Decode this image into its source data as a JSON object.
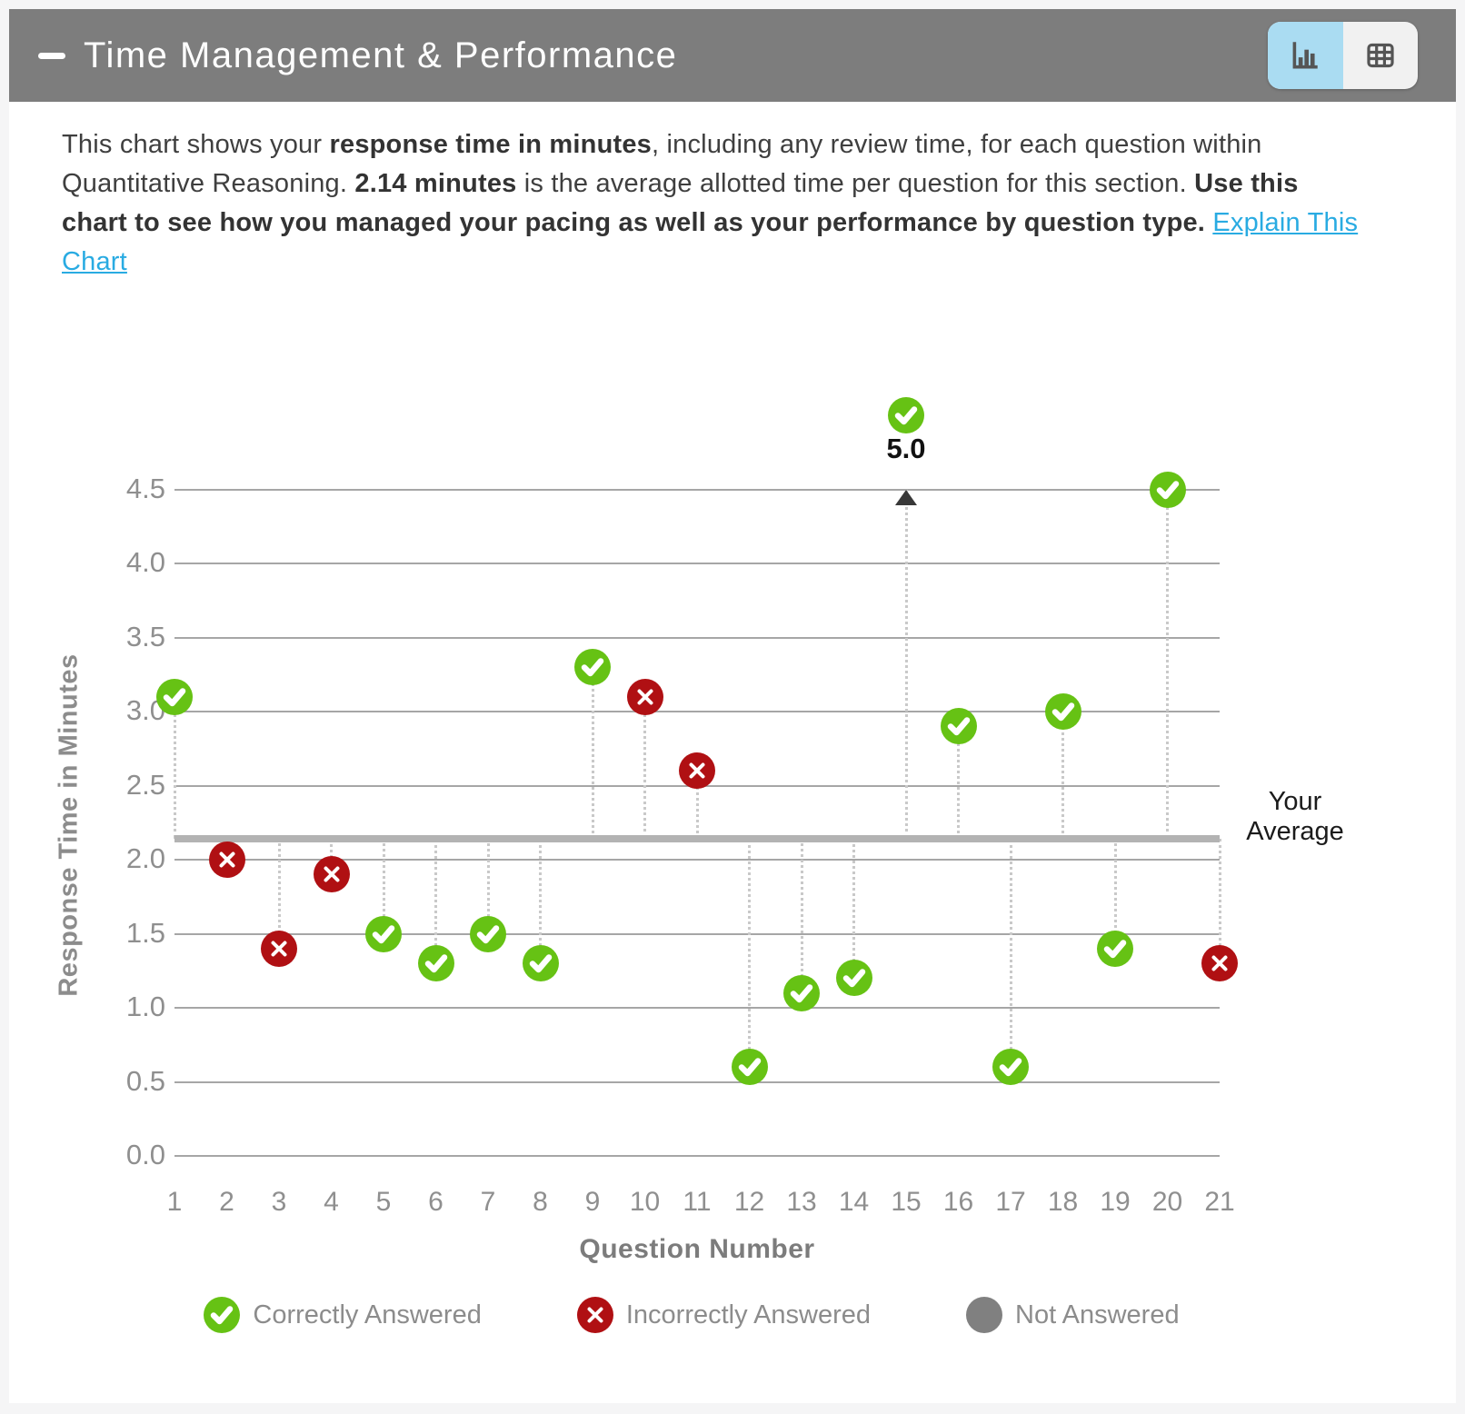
{
  "header": {
    "title": "Time Management & Performance",
    "collapse_icon": "minus",
    "views": [
      {
        "id": "chart",
        "icon": "bar-chart-icon",
        "active": true
      },
      {
        "id": "table",
        "icon": "table-icon",
        "active": false
      }
    ]
  },
  "description": {
    "segments": [
      {
        "text": "This chart shows your ",
        "style": "normal"
      },
      {
        "text": "response time in minutes",
        "style": "bold"
      },
      {
        "text": ", including any review time, for each question within Quantitative Reasoning. ",
        "style": "normal"
      },
      {
        "text": "2.14 minutes",
        "style": "bold"
      },
      {
        "text": " is the average allotted time per question for this section. ",
        "style": "normal"
      },
      {
        "text": "Use this chart to see how you managed your pacing as well as your performance by question type. ",
        "style": "bold"
      },
      {
        "text": "Explain This Chart",
        "style": "link"
      }
    ]
  },
  "chart_data": {
    "type": "scatter",
    "xlabel": "Question Number",
    "ylabel": "Response Time in Minutes",
    "x_categories": [
      1,
      2,
      3,
      4,
      5,
      6,
      7,
      8,
      9,
      10,
      11,
      12,
      13,
      14,
      15,
      16,
      17,
      18,
      19,
      20,
      21
    ],
    "ylim": [
      0,
      4.5
    ],
    "ytick_step": 0.5,
    "average_line": {
      "value": 2.14,
      "label_line1": "Your",
      "label_line2": "Average"
    },
    "points": [
      {
        "question": 1,
        "minutes": 3.1,
        "status": "correct"
      },
      {
        "question": 2,
        "minutes": 2.0,
        "status": "incorrect"
      },
      {
        "question": 3,
        "minutes": 1.4,
        "status": "incorrect"
      },
      {
        "question": 4,
        "minutes": 1.9,
        "status": "incorrect"
      },
      {
        "question": 5,
        "minutes": 1.5,
        "status": "correct"
      },
      {
        "question": 6,
        "minutes": 1.3,
        "status": "correct"
      },
      {
        "question": 7,
        "minutes": 1.5,
        "status": "correct"
      },
      {
        "question": 8,
        "minutes": 1.3,
        "status": "correct"
      },
      {
        "question": 9,
        "minutes": 3.3,
        "status": "correct"
      },
      {
        "question": 10,
        "minutes": 3.1,
        "status": "incorrect"
      },
      {
        "question": 11,
        "minutes": 2.6,
        "status": "incorrect"
      },
      {
        "question": 12,
        "minutes": 0.6,
        "status": "correct"
      },
      {
        "question": 13,
        "minutes": 1.1,
        "status": "correct"
      },
      {
        "question": 14,
        "minutes": 1.2,
        "status": "correct"
      },
      {
        "question": 15,
        "minutes": 5.0,
        "status": "correct",
        "clipped": true,
        "clip_label": "5.0"
      },
      {
        "question": 16,
        "minutes": 2.9,
        "status": "correct"
      },
      {
        "question": 17,
        "minutes": 0.6,
        "status": "correct"
      },
      {
        "question": 18,
        "minutes": 3.0,
        "status": "correct"
      },
      {
        "question": 19,
        "minutes": 1.4,
        "status": "correct"
      },
      {
        "question": 20,
        "minutes": 4.5,
        "status": "correct"
      },
      {
        "question": 21,
        "minutes": 1.3,
        "status": "incorrect"
      }
    ],
    "legend": [
      {
        "status": "correct",
        "label": "Correctly Answered"
      },
      {
        "status": "incorrect",
        "label": "Incorrectly Answered"
      },
      {
        "status": "not_answered",
        "label": "Not Answered"
      }
    ]
  },
  "colors": {
    "correct": "#66c214",
    "incorrect": "#b01013",
    "not_answered": "#808080",
    "average_line": "#b3b3b3",
    "gridline": "#a6a6a6",
    "leader_dotted": "#c9c9c9",
    "axis_text": "#8f8f8f",
    "axis_title": "#7c7c7c",
    "link": "#29abe2",
    "header_background": "#7d7d7d",
    "toggle_active_background": "#aadcf2",
    "icon_gray": "#555555"
  }
}
